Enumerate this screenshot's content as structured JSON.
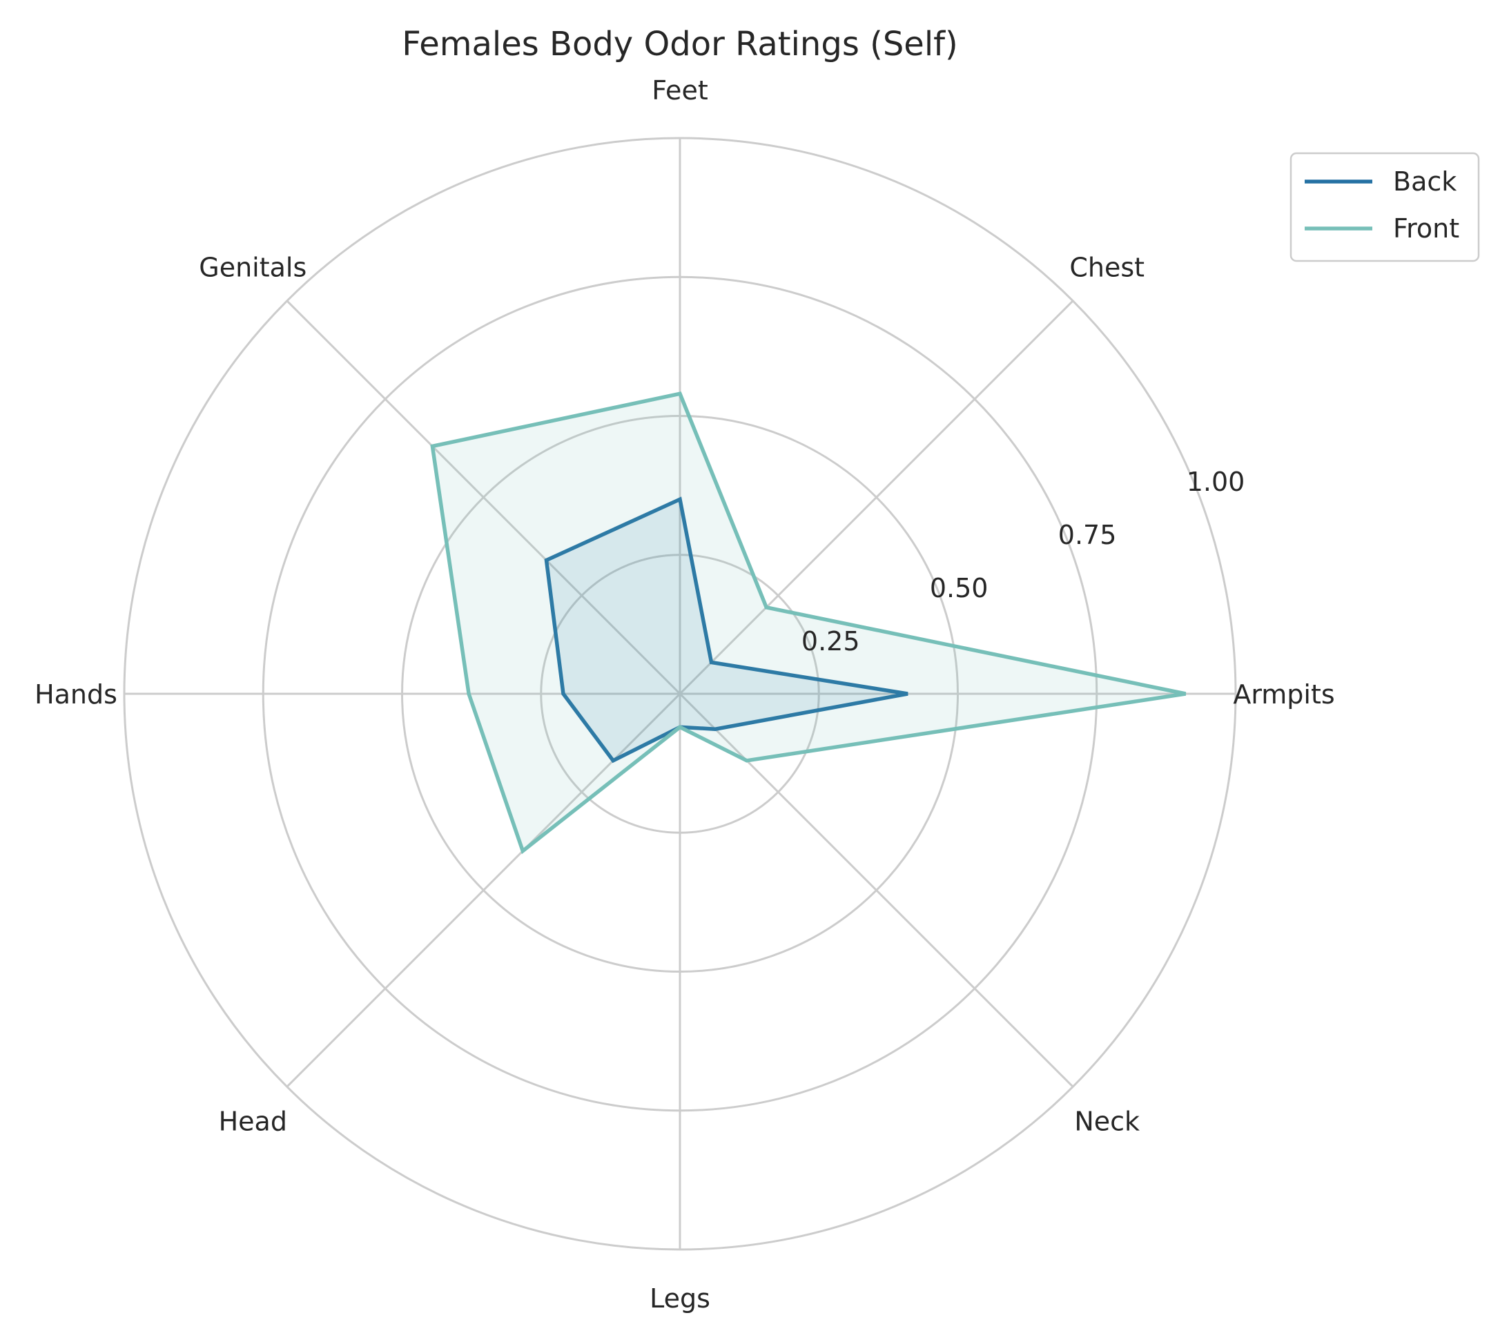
{
  "chart_data": {
    "type": "radar",
    "title": "Females Body Odor Ratings (Self)",
    "categories": [
      "Armpits",
      "Chest",
      "Feet",
      "Genitals",
      "Hands",
      "Head",
      "Legs",
      "Neck"
    ],
    "series": [
      {
        "name": "Back",
        "values": [
          0.41,
          0.08,
          0.35,
          0.34,
          0.21,
          0.17,
          0.06,
          0.09
        ],
        "color": "#2471a3"
      },
      {
        "name": "Front",
        "values": [
          0.91,
          0.22,
          0.54,
          0.63,
          0.38,
          0.4,
          0.06,
          0.17
        ],
        "color": "#76bfb8"
      }
    ],
    "rlim": [
      0,
      1.0
    ],
    "rticks": [
      "0.25",
      "0.50",
      "0.75",
      "1.00"
    ],
    "grid": true,
    "legend_position": "top-right"
  }
}
